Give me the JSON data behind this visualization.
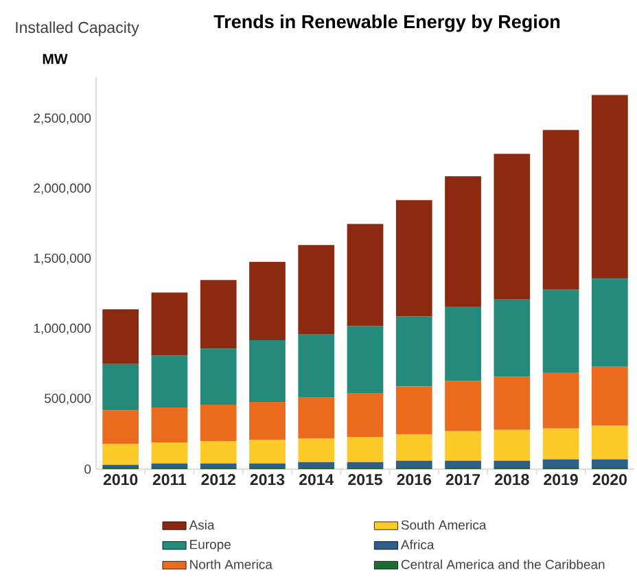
{
  "chart_data": {
    "type": "bar",
    "stacked": true,
    "title": "Trends in Renewable Energy by Region",
    "ylabel": "Installed Capacity",
    "annotations": [
      "MW"
    ],
    "categories": [
      "2010",
      "2011",
      "2012",
      "2013",
      "2014",
      "2015",
      "2016",
      "2017",
      "2018",
      "2019",
      "2020"
    ],
    "series": [
      {
        "name": "Central America and the Caribbean",
        "color": "#1e6b34",
        "values": [
          10000,
          10000,
          10000,
          10000,
          10000,
          10000,
          10000,
          10000,
          10000,
          10000,
          10000
        ]
      },
      {
        "name": "Africa",
        "color": "#2f5e8a",
        "values": [
          20000,
          30000,
          30000,
          30000,
          40000,
          40000,
          50000,
          50000,
          50000,
          60000,
          60000
        ]
      },
      {
        "name": "South America",
        "color": "#fccb2a",
        "values": [
          150000,
          150000,
          160000,
          170000,
          170000,
          180000,
          190000,
          210000,
          220000,
          220000,
          240000
        ]
      },
      {
        "name": "North America",
        "color": "#ea6a1e",
        "values": [
          240000,
          250000,
          260000,
          270000,
          290000,
          310000,
          340000,
          360000,
          380000,
          400000,
          420000
        ]
      },
      {
        "name": "Europe",
        "color": "#248a7a",
        "values": [
          330000,
          370000,
          400000,
          440000,
          450000,
          480000,
          500000,
          530000,
          550000,
          590000,
          630000
        ]
      },
      {
        "name": "Asia",
        "color": "#8c2a11",
        "values": [
          390000,
          450000,
          490000,
          560000,
          640000,
          730000,
          830000,
          930000,
          1040000,
          1140000,
          1310000
        ]
      }
    ],
    "ylim": [
      0,
      2800000
    ],
    "yticks": [
      0,
      {
        "value": 500000,
        "label": "500,000"
      },
      {
        "value": 1000000,
        "label": "1,000,000"
      },
      {
        "value": 1500000,
        "label": "1,500,000"
      },
      {
        "value": 2000000,
        "label": "2,000,000"
      },
      {
        "value": 2500000,
        "label": "2,500,000"
      }
    ],
    "legend": "bottom"
  }
}
